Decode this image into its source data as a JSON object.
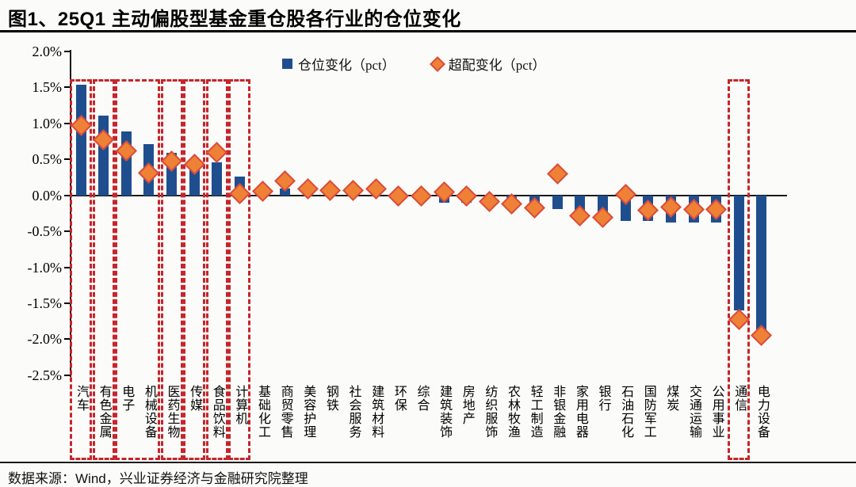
{
  "header": {
    "title": "图1、25Q1 主动偏股型基金重仓股各行业的仓位变化"
  },
  "footer": {
    "source": "数据来源：Wind，兴业证券经济与金融研究院整理"
  },
  "chart_data": {
    "type": "bar",
    "title": "图1、25Q1 主动偏股型基金重仓股各行业的仓位变化",
    "legend": [
      "仓位变化（pct）",
      "超配变化（pct）"
    ],
    "legend_position": "top",
    "grid": false,
    "ylim": [
      -2.5,
      2.0
    ],
    "ytick_step": 0.5,
    "ytick_labels": [
      "2.0%",
      "1.5%",
      "1.0%",
      "0.5%",
      "0.0%",
      "-0.5%",
      "-1.0%",
      "-1.5%",
      "-2.0%",
      "-2.5%"
    ],
    "categories": [
      "汽车",
      "有色金属",
      "电子",
      "机械设备",
      "医药生物",
      "传媒",
      "食品饮料",
      "计算机",
      "基础化工",
      "商贸零售",
      "美容护理",
      "钢铁",
      "社会服务",
      "建筑材料",
      "环保",
      "综合",
      "建筑装饰",
      "房地产",
      "纺织服饰",
      "农林牧渔",
      "轻工制造",
      "非银金融",
      "家用电器",
      "银行",
      "石油石化",
      "国防军工",
      "煤炭",
      "交通运输",
      "公用事业",
      "通信",
      "电力设备"
    ],
    "series": [
      {
        "name": "仓位变化（pct）",
        "type": "bar",
        "color": "#1f4e8f",
        "values": [
          1.54,
          1.11,
          0.89,
          0.71,
          0.59,
          0.44,
          0.46,
          0.26,
          0.08,
          0.1,
          0.07,
          0.06,
          0.06,
          0.1,
          0.0,
          0.0,
          -0.1,
          -0.1,
          -0.13,
          -0.15,
          -0.13,
          -0.19,
          -0.32,
          -0.34,
          -0.36,
          -0.36,
          -0.38,
          -0.38,
          -0.38,
          -1.6,
          -1.89
        ]
      },
      {
        "name": "超配变化（pct）",
        "type": "scatter",
        "marker": "diamond",
        "color": "#ee8136",
        "border_color": "#da4b3c",
        "values": [
          0.97,
          0.77,
          0.62,
          0.31,
          0.48,
          0.43,
          0.6,
          0.02,
          0.06,
          0.2,
          0.09,
          0.07,
          0.07,
          0.09,
          -0.01,
          -0.01,
          0.05,
          -0.01,
          -0.09,
          -0.12,
          -0.17,
          0.3,
          -0.28,
          -0.31,
          0.01,
          -0.21,
          -0.16,
          -0.19,
          -0.2,
          -1.72,
          -1.95
        ]
      }
    ],
    "highlight_boxes": {
      "color": "#c4262c",
      "style": "dashed",
      "groups": [
        [
          0,
          0
        ],
        [
          1,
          1
        ],
        [
          2,
          3
        ],
        [
          4,
          4
        ],
        [
          5,
          5
        ],
        [
          6,
          6
        ],
        [
          7,
          7
        ],
        [
          29,
          29
        ]
      ]
    }
  }
}
